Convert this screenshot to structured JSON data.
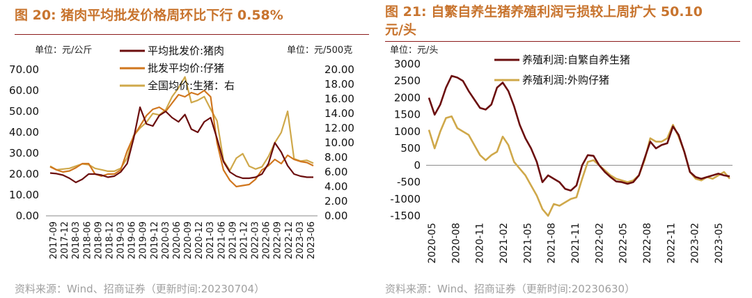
{
  "left": {
    "figure_title": "图 20:  猪肉平均批发价格周环比下行 0.58%",
    "source": "资料来源：Wind、招商证券（更新时间:20230704）",
    "unit_left": "单位：元/公斤",
    "unit_right": "单位：元/500克",
    "colors": {
      "pork": "#6b0e0e",
      "piglet": "#d0761e",
      "hog": "#cfa84a"
    },
    "chart_data": {
      "type": "line",
      "x_tick_labels": [
        "2017-09",
        "2017-12",
        "2018-03",
        "2018-06",
        "2018-09",
        "2018-12",
        "2019-03",
        "2019-06",
        "2019-09",
        "2019-12",
        "2020-03",
        "2020-06",
        "2020-09",
        "2020-12",
        "2021-03",
        "2021-06",
        "2021-09",
        "2021-12",
        "2022-03",
        "2022-06",
        "2022-09",
        "2022-12",
        "2023-03",
        "2023-06"
      ],
      "y_left": {
        "min": 0,
        "max": 70,
        "step": 10,
        "tick_labels": [
          "0.00",
          "10.00",
          "20.00",
          "30.00",
          "40.00",
          "50.00",
          "60.00",
          "70.00"
        ]
      },
      "y_right": {
        "min": 0,
        "max": 20,
        "step": 2,
        "tick_labels": [
          "0.00",
          "2.00",
          "4.00",
          "6.00",
          "8.00",
          "10.00",
          "12.00",
          "14.00",
          "16.00",
          "18.00",
          "20.00"
        ]
      },
      "series": [
        {
          "name": "平均批发价:猪肉",
          "axis": "left",
          "values": [
            20.5,
            20.2,
            19.5,
            18,
            16,
            17.5,
            20,
            20,
            19.5,
            18.5,
            19,
            21,
            25,
            37,
            52,
            44,
            43,
            48,
            50,
            47,
            45,
            48.5,
            41.5,
            40,
            45,
            47,
            37,
            26,
            21,
            19,
            18,
            18,
            18.5,
            20,
            25,
            35,
            30.5,
            24,
            20,
            19,
            18.5,
            18.5
          ]
        },
        {
          "name": "批发平均价:仔猪",
          "axis": "left",
          "values": [
            23.5,
            22,
            21,
            21.5,
            23,
            25,
            25,
            20,
            19,
            20,
            20,
            22,
            31,
            38,
            43,
            48,
            51,
            52,
            50,
            54,
            58,
            57,
            59,
            58,
            60,
            57,
            35,
            22,
            17,
            14,
            14.5,
            15,
            17.5,
            22,
            24,
            27,
            25,
            29,
            27,
            26,
            25.5,
            24
          ]
        },
        {
          "name": "全国均价:生猪：右",
          "axis": "right",
          "values": [
            6.8,
            6.3,
            6.4,
            6.5,
            6.8,
            7.1,
            7,
            6.5,
            6.3,
            6.1,
            6.1,
            6.5,
            7.9,
            11,
            12,
            12.8,
            14,
            13.8,
            14.5,
            16.3,
            17.5,
            19,
            15.5,
            15.8,
            16.3,
            14.6,
            13,
            7.6,
            6.2,
            7.9,
            8.5,
            6.8,
            6.4,
            6.7,
            8.1,
            10,
            11.4,
            14.3,
            7.8,
            7.5,
            7.6,
            7.2
          ]
        }
      ]
    }
  },
  "right": {
    "figure_title_line1": "图  21:  自繁自养生猪养殖利润亏损较上周扩大  50.10",
    "figure_title_line2": "元/头",
    "source": "资料来源：Wind、招商证券（更新时间:20230630）",
    "unit": "单位：元/头",
    "colors": {
      "self": "#6b0e0e",
      "purchased": "#cfa84a"
    },
    "chart_data": {
      "type": "line",
      "x_tick_labels": [
        "2020-05",
        "2020-08",
        "2020-11",
        "2021-02",
        "2021-05",
        "2021-08",
        "2021-11",
        "2022-02",
        "2022-05",
        "2022-08",
        "2022-11",
        "2023-02",
        "2023-05"
      ],
      "y": {
        "min": -1500,
        "max": 3000,
        "step": 500,
        "tick_labels": [
          "-1500",
          "-1000",
          "-500",
          "0",
          "500",
          "1000",
          "1500",
          "2000",
          "2500",
          "3000"
        ]
      },
      "series": [
        {
          "name": "养殖利润:自繁自养生猪",
          "values": [
            2000,
            1500,
            1800,
            2300,
            2650,
            2600,
            2500,
            2200,
            1950,
            1700,
            1650,
            1800,
            2300,
            2450,
            2200,
            1750,
            1200,
            800,
            500,
            100,
            -500,
            -300,
            -400,
            -500,
            -700,
            -750,
            -600,
            0,
            300,
            280,
            0,
            -200,
            -350,
            -480,
            -500,
            -550,
            -500,
            -300,
            200,
            700,
            500,
            600,
            650,
            1150,
            900,
            400,
            -200,
            -350,
            -400,
            -350,
            -300,
            -250,
            -300,
            -330
          ]
        },
        {
          "name": "养殖利润:外购仔猪",
          "values": [
            1050,
            500,
            1000,
            1400,
            1450,
            1100,
            1000,
            900,
            600,
            300,
            150,
            300,
            400,
            850,
            600,
            100,
            -100,
            -300,
            -600,
            -900,
            -1300,
            -1500,
            -1150,
            -1200,
            -1100,
            -1000,
            -950,
            -400,
            100,
            150,
            0,
            -150,
            -300,
            -400,
            -450,
            -500,
            -450,
            -300,
            150,
            800,
            700,
            700,
            800,
            1200,
            850,
            400,
            -200,
            -400,
            -450,
            -350,
            -400,
            -300,
            -200,
            -400
          ]
        }
      ]
    }
  }
}
